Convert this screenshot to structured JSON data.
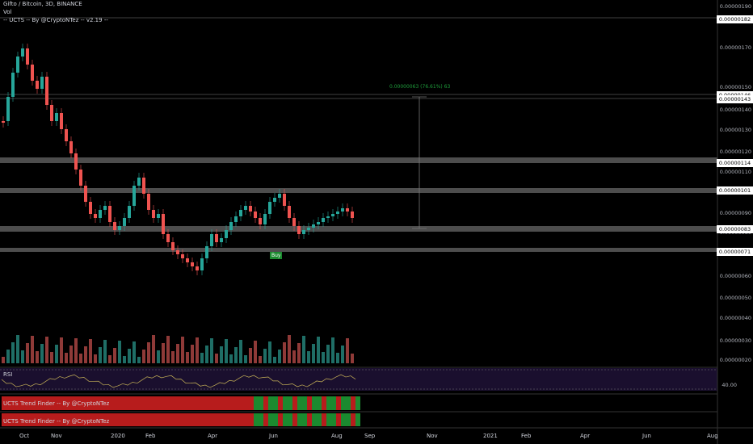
{
  "header": {
    "symbol_line": "Gifto / Bitcoin, 3D, BINANCE",
    "vol_label": "Vol",
    "indicator_line": "-- UCTS -- By @CryptoNTez -- v2.19 --"
  },
  "price_axis": {
    "ticks": [
      "0.00000190",
      "0.00000170",
      "0.00000150",
      "0.00000140",
      "0.00000130",
      "0.00000120",
      "0.00000110",
      "0.00000090",
      "0.00000080",
      "0.00000060",
      "0.00000050",
      "0.00000040",
      "0.00000030",
      "0.00000020"
    ],
    "highlight_boxes": [
      "0.00000182",
      "0.00000146",
      "0.00000143",
      "0.00000114",
      "0.00000101",
      "0.00000083",
      "0.00000071"
    ]
  },
  "measure_label": "0.00000063 (76.61%) 63",
  "buy_label": "Buy",
  "rsi": {
    "title": "RSI",
    "value": "40.00"
  },
  "trend_finder_1": "UCTS Trend Finder -- By @CryptoNTez",
  "trend_finder_2": "UCTS Trend Finder -- By @CryptoNTez",
  "time_axis": [
    "Oct",
    "Nov",
    "2020",
    "Feb",
    "Apr",
    "Jun",
    "Aug",
    "Sep",
    "Nov",
    "2021",
    "Feb",
    "Apr",
    "Jun",
    "Aug"
  ],
  "colors": {
    "up": "#26a69a",
    "down": "#ef5350",
    "bg": "#000000",
    "zone": "#4a4a4a",
    "rsi_bg": "#1a0f2e"
  }
}
